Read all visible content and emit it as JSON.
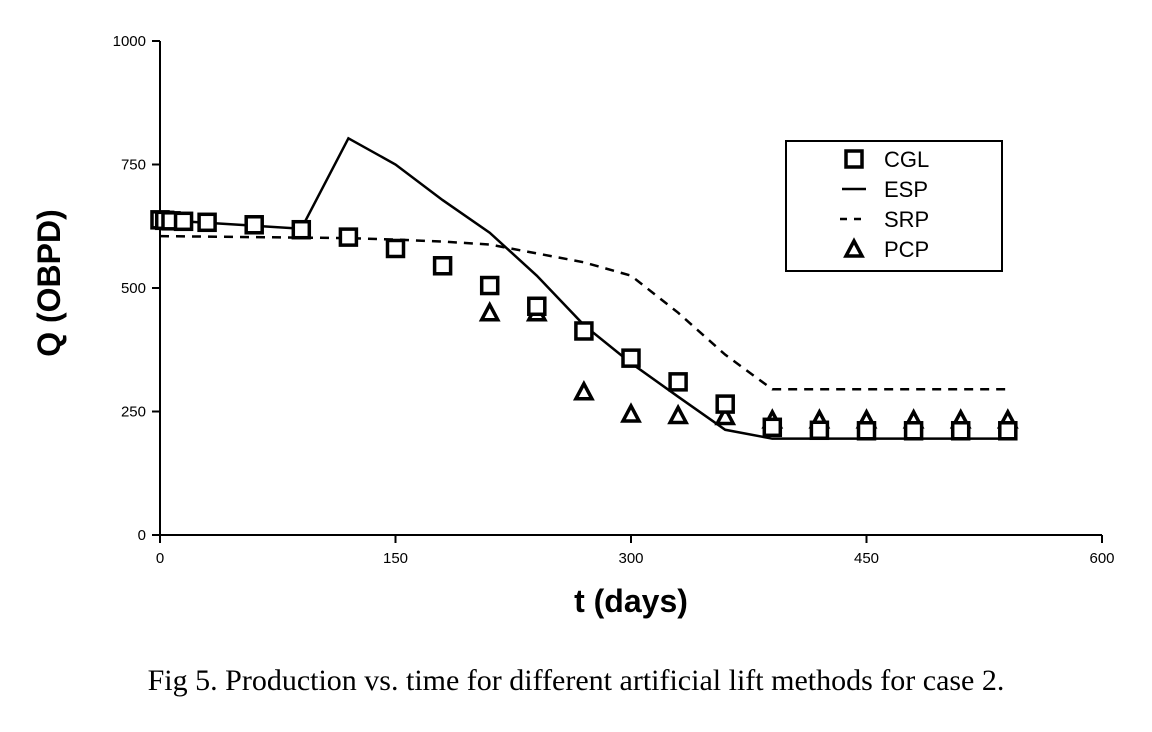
{
  "caption": "Fig 5. Production vs. time for different artificial lift methods for case 2.",
  "chart_data": {
    "type": "scatter",
    "xlabel": "t (days)",
    "ylabel": "Q (OBPD)",
    "xlim": [
      0,
      600
    ],
    "ylim": [
      0,
      1000
    ],
    "xticks": [
      0,
      150,
      300,
      450,
      600
    ],
    "yticks": [
      0,
      250,
      500,
      750,
      1000
    ],
    "grid": false,
    "legend_position": "top-right",
    "series": [
      {
        "name": "CGL",
        "style": "open-square-marker",
        "x": [
          0,
          3,
          7,
          15,
          30,
          60,
          90,
          120,
          150,
          180,
          210,
          240,
          270,
          300,
          330,
          360,
          390,
          420,
          450,
          480,
          510,
          540
        ],
        "y": [
          638,
          637,
          636,
          635,
          633,
          628,
          618,
          603,
          580,
          545,
          505,
          463,
          413,
          358,
          310,
          265,
          218,
          212,
          211,
          211,
          211,
          211
        ]
      },
      {
        "name": "ESP",
        "style": "solid-line",
        "x": [
          0,
          90,
          120,
          150,
          180,
          210,
          240,
          270,
          300,
          330,
          360,
          390,
          420,
          450,
          480,
          510,
          540
        ],
        "y": [
          638,
          620,
          803,
          750,
          678,
          612,
          525,
          425,
          348,
          280,
          213,
          195,
          195,
          195,
          195,
          195,
          195
        ]
      },
      {
        "name": "SRP",
        "style": "dashed-line",
        "x": [
          0,
          30,
          60,
          90,
          120,
          150,
          180,
          210,
          240,
          270,
          300,
          330,
          360,
          390,
          420,
          450,
          480,
          510,
          540
        ],
        "y": [
          605,
          604,
          603,
          602,
          601,
          598,
          594,
          588,
          570,
          552,
          525,
          450,
          365,
          295,
          295,
          295,
          295,
          295,
          295
        ]
      },
      {
        "name": "PCP",
        "style": "open-triangle-marker",
        "x": [
          210,
          240,
          270,
          300,
          330,
          360,
          390,
          420,
          450,
          480,
          510,
          540
        ],
        "y": [
          450,
          450,
          290,
          245,
          242,
          240,
          233,
          233,
          233,
          233,
          233,
          233
        ]
      }
    ]
  }
}
